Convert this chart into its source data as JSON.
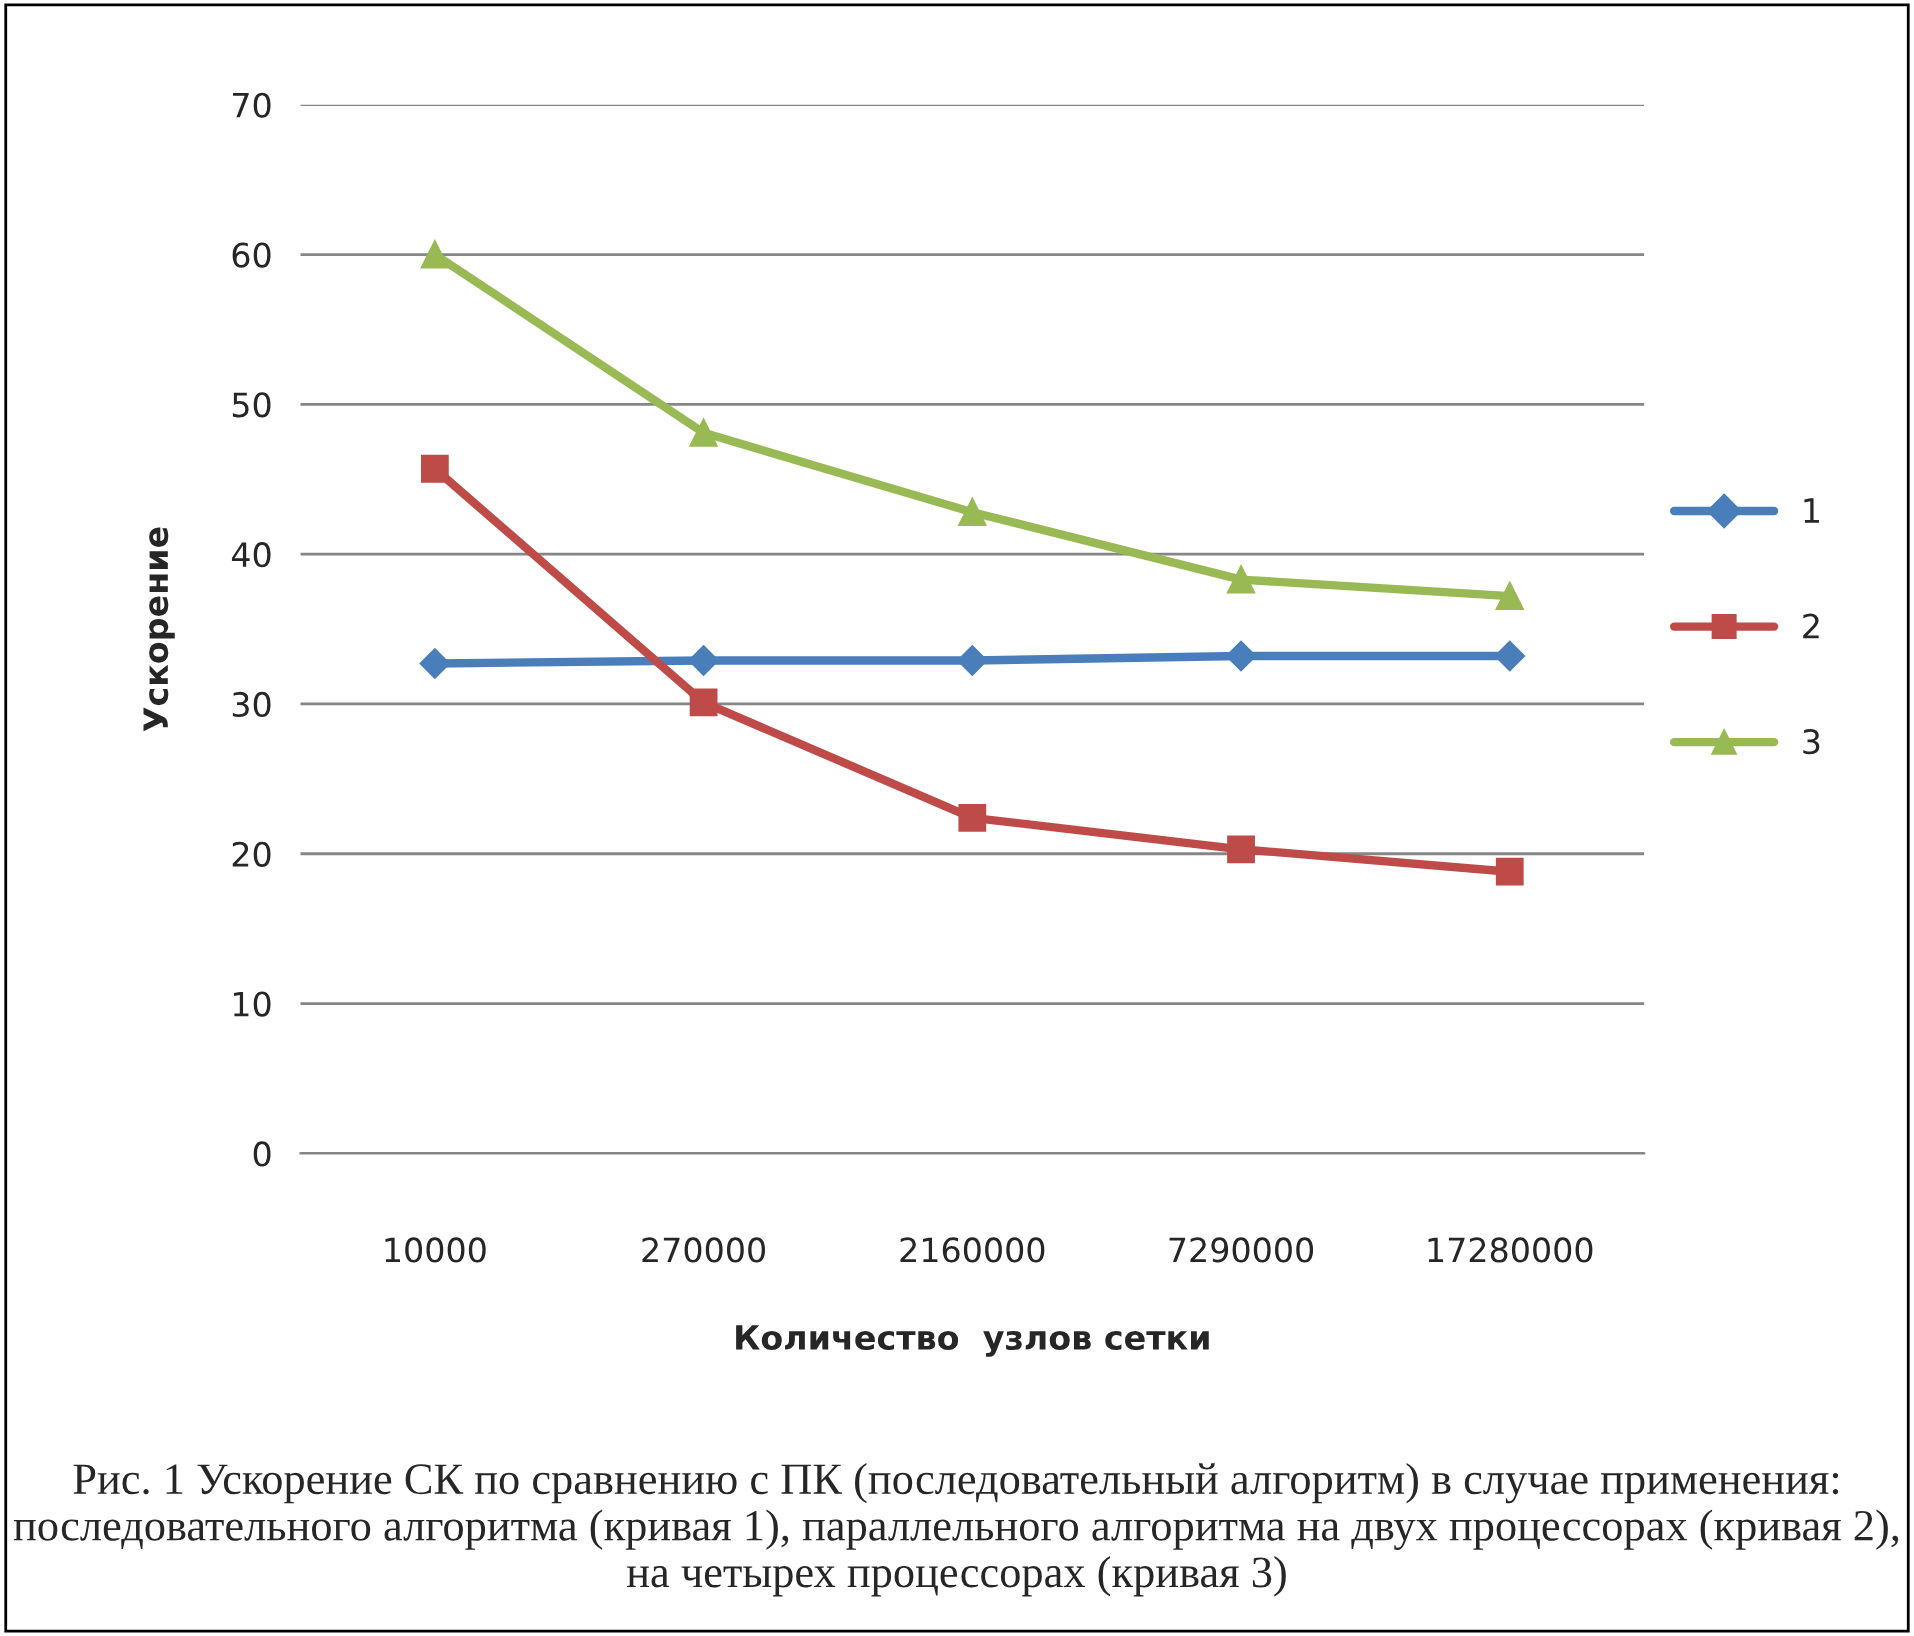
{
  "chart_data": {
    "type": "line",
    "xlabel": "Количество  узлов сетки",
    "ylabel": "Ускорение",
    "categories": [
      "10000",
      "270000",
      "2160000",
      "7290000",
      "17280000"
    ],
    "series": [
      {
        "name": "1",
        "color": "#4a7ebb",
        "marker": "diamond",
        "values": [
          32.7,
          32.9,
          32.9,
          33.2,
          33.2
        ]
      },
      {
        "name": "2",
        "color": "#be4b48",
        "marker": "square",
        "values": [
          45.7,
          30.1,
          22.4,
          20.3,
          18.8
        ]
      },
      {
        "name": "3",
        "color": "#98b954",
        "marker": "triangle",
        "values": [
          60.0,
          48.1,
          42.8,
          38.3,
          37.2
        ]
      }
    ],
    "ylim": [
      0,
      70
    ],
    "yticks": [
      0,
      10,
      20,
      30,
      40,
      50,
      60,
      70
    ],
    "grid": "y",
    "legend": "right",
    "line_style": "solid",
    "annotations": [
      "Рис. 1 Ускорение СК по сравнению с ПК (последовательный алгоритм) в случае применения: последовательного алгоритма (кривая 1), параллельного алгоритма на двух процессорах (кривая 2), на четырех процессорах (кривая 3)"
    ]
  }
}
